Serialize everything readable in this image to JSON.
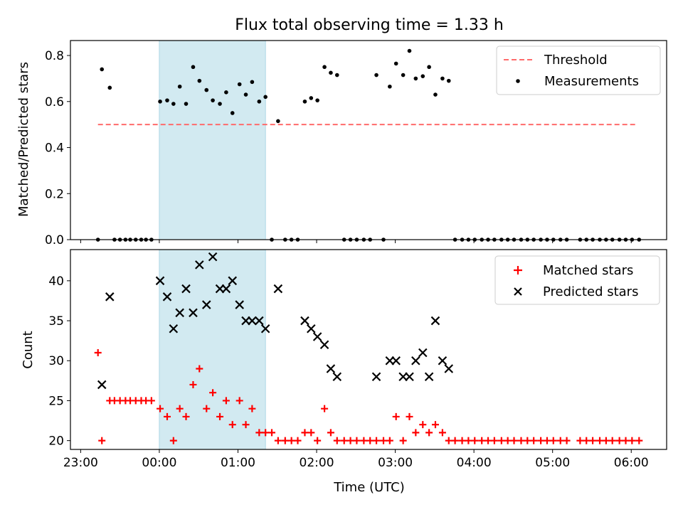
{
  "figure": {
    "title": "Flux total observing time = 1.33 h",
    "xlabel": "Time (UTC)",
    "xticks": [
      {
        "h": -1,
        "label": "23:00"
      },
      {
        "h": 0,
        "label": "00:00"
      },
      {
        "h": 1,
        "label": "01:00"
      },
      {
        "h": 2,
        "label": "02:00"
      },
      {
        "h": 3,
        "label": "03:00"
      },
      {
        "h": 4,
        "label": "04:00"
      },
      {
        "h": 5,
        "label": "05:00"
      },
      {
        "h": 6,
        "label": "06:00"
      }
    ],
    "shaded_span": {
      "start_h": 0.0,
      "end_h": 1.35,
      "color": "#add8e6"
    }
  },
  "chart_data": [
    {
      "type": "scatter",
      "ylabel": "Matched/Predicted stars",
      "xlim_h": [
        -1.13,
        6.45
      ],
      "ylim": [
        0,
        0.865
      ],
      "yticks": [
        {
          "v": 0.0,
          "label": "0.0"
        },
        {
          "v": 0.2,
          "label": "0.2"
        },
        {
          "v": 0.4,
          "label": "0.4"
        },
        {
          "v": 0.6,
          "label": "0.6"
        },
        {
          "v": 0.8,
          "label": "0.8"
        }
      ],
      "threshold": {
        "name": "Threshold",
        "value": 0.5,
        "x_range_h": [
          -0.78,
          6.05
        ],
        "color": "#ff6b6b"
      },
      "series": [
        {
          "name": "Measurements",
          "color": "#000000",
          "points": [
            [
              -0.78,
              0.0
            ],
            [
              -0.73,
              0.74
            ],
            [
              -0.63,
              0.66
            ],
            [
              -0.57,
              0.0
            ],
            [
              -0.5,
              0.0
            ],
            [
              -0.43,
              0.0
            ],
            [
              -0.37,
              0.0
            ],
            [
              -0.3,
              0.0
            ],
            [
              -0.23,
              0.0
            ],
            [
              -0.17,
              0.0
            ],
            [
              -0.1,
              0.0
            ],
            [
              0.01,
              0.6
            ],
            [
              0.1,
              0.605
            ],
            [
              0.18,
              0.59
            ],
            [
              0.26,
              0.665
            ],
            [
              0.34,
              0.59
            ],
            [
              0.43,
              0.75
            ],
            [
              0.51,
              0.69
            ],
            [
              0.6,
              0.65
            ],
            [
              0.68,
              0.605
            ],
            [
              0.77,
              0.59
            ],
            [
              0.85,
              0.64
            ],
            [
              0.93,
              0.55
            ],
            [
              1.02,
              0.675
            ],
            [
              1.1,
              0.63
            ],
            [
              1.18,
              0.685
            ],
            [
              1.27,
              0.6
            ],
            [
              1.35,
              0.62
            ],
            [
              1.43,
              0.0
            ],
            [
              1.51,
              0.515
            ],
            [
              1.6,
              0.0
            ],
            [
              1.68,
              0.0
            ],
            [
              1.76,
              0.0
            ],
            [
              1.85,
              0.6
            ],
            [
              1.93,
              0.615
            ],
            [
              2.01,
              0.605
            ],
            [
              2.1,
              0.75
            ],
            [
              2.18,
              0.725
            ],
            [
              2.26,
              0.715
            ],
            [
              2.35,
              0.0
            ],
            [
              2.43,
              0.0
            ],
            [
              2.51,
              0.0
            ],
            [
              2.6,
              0.0
            ],
            [
              2.68,
              0.0
            ],
            [
              2.76,
              0.715
            ],
            [
              2.85,
              0.0
            ],
            [
              2.93,
              0.665
            ],
            [
              3.01,
              0.765
            ],
            [
              3.1,
              0.715
            ],
            [
              3.18,
              0.82
            ],
            [
              3.26,
              0.7
            ],
            [
              3.35,
              0.71
            ],
            [
              3.43,
              0.75
            ],
            [
              3.51,
              0.63
            ],
            [
              3.6,
              0.7
            ],
            [
              3.68,
              0.69
            ],
            [
              3.76,
              0.0
            ],
            [
              3.85,
              0.0
            ],
            [
              3.93,
              0.0
            ],
            [
              4.01,
              0.0
            ],
            [
              4.1,
              0.0
            ],
            [
              4.18,
              0.0
            ],
            [
              4.26,
              0.0
            ],
            [
              4.35,
              0.0
            ],
            [
              4.43,
              0.0
            ],
            [
              4.51,
              0.0
            ],
            [
              4.6,
              0.0
            ],
            [
              4.68,
              0.0
            ],
            [
              4.76,
              0.0
            ],
            [
              4.85,
              0.0
            ],
            [
              4.93,
              0.0
            ],
            [
              5.01,
              0.0
            ],
            [
              5.1,
              0.0
            ],
            [
              5.18,
              0.0
            ],
            [
              5.35,
              0.0
            ],
            [
              5.43,
              0.0
            ],
            [
              5.51,
              0.0
            ],
            [
              5.6,
              0.0
            ],
            [
              5.68,
              0.0
            ],
            [
              5.76,
              0.0
            ],
            [
              5.85,
              0.0
            ],
            [
              5.93,
              0.0
            ],
            [
              6.01,
              0.0
            ],
            [
              6.1,
              0.0
            ]
          ]
        }
      ],
      "legend": {
        "placement": "upper right",
        "entries": [
          "Threshold",
          "Measurements"
        ]
      }
    },
    {
      "type": "scatter",
      "ylabel": "Count",
      "xlim_h": [
        -1.13,
        6.45
      ],
      "ylim": [
        18.9,
        43.9
      ],
      "yticks": [
        {
          "v": 20,
          "label": "20"
        },
        {
          "v": 25,
          "label": "25"
        },
        {
          "v": 30,
          "label": "30"
        },
        {
          "v": 35,
          "label": "35"
        },
        {
          "v": 40,
          "label": "40"
        }
      ],
      "series": [
        {
          "name": "Matched stars",
          "marker": "plus",
          "color": "#ff0000",
          "points": [
            [
              -0.78,
              31
            ],
            [
              -0.73,
              20
            ],
            [
              -0.63,
              25
            ],
            [
              -0.57,
              25
            ],
            [
              -0.5,
              25
            ],
            [
              -0.43,
              25
            ],
            [
              -0.37,
              25
            ],
            [
              -0.3,
              25
            ],
            [
              -0.23,
              25
            ],
            [
              -0.17,
              25
            ],
            [
              -0.1,
              25
            ],
            [
              0.01,
              24
            ],
            [
              0.1,
              23
            ],
            [
              0.18,
              20
            ],
            [
              0.26,
              24
            ],
            [
              0.34,
              23
            ],
            [
              0.43,
              27
            ],
            [
              0.51,
              29
            ],
            [
              0.6,
              24
            ],
            [
              0.68,
              26
            ],
            [
              0.77,
              23
            ],
            [
              0.85,
              25
            ],
            [
              0.93,
              22
            ],
            [
              1.02,
              25
            ],
            [
              1.1,
              22
            ],
            [
              1.18,
              24
            ],
            [
              1.27,
              21
            ],
            [
              1.35,
              21
            ],
            [
              1.43,
              21
            ],
            [
              1.51,
              20
            ],
            [
              1.6,
              20
            ],
            [
              1.68,
              20
            ],
            [
              1.76,
              20
            ],
            [
              1.85,
              21
            ],
            [
              1.93,
              21
            ],
            [
              2.01,
              20
            ],
            [
              2.1,
              24
            ],
            [
              2.18,
              21
            ],
            [
              2.26,
              20
            ],
            [
              2.35,
              20
            ],
            [
              2.43,
              20
            ],
            [
              2.51,
              20
            ],
            [
              2.6,
              20
            ],
            [
              2.68,
              20
            ],
            [
              2.76,
              20
            ],
            [
              2.85,
              20
            ],
            [
              2.93,
              20
            ],
            [
              3.01,
              23
            ],
            [
              3.1,
              20
            ],
            [
              3.18,
              23
            ],
            [
              3.26,
              21
            ],
            [
              3.35,
              22
            ],
            [
              3.43,
              21
            ],
            [
              3.51,
              22
            ],
            [
              3.6,
              21
            ],
            [
              3.68,
              20
            ],
            [
              3.76,
              20
            ],
            [
              3.85,
              20
            ],
            [
              3.93,
              20
            ],
            [
              4.01,
              20
            ],
            [
              4.1,
              20
            ],
            [
              4.18,
              20
            ],
            [
              4.26,
              20
            ],
            [
              4.35,
              20
            ],
            [
              4.43,
              20
            ],
            [
              4.51,
              20
            ],
            [
              4.6,
              20
            ],
            [
              4.68,
              20
            ],
            [
              4.76,
              20
            ],
            [
              4.85,
              20
            ],
            [
              4.93,
              20
            ],
            [
              5.01,
              20
            ],
            [
              5.1,
              20
            ],
            [
              5.18,
              20
            ],
            [
              5.35,
              20
            ],
            [
              5.43,
              20
            ],
            [
              5.51,
              20
            ],
            [
              5.6,
              20
            ],
            [
              5.68,
              20
            ],
            [
              5.76,
              20
            ],
            [
              5.85,
              20
            ],
            [
              5.93,
              20
            ],
            [
              6.01,
              20
            ],
            [
              6.1,
              20
            ]
          ]
        },
        {
          "name": "Predicted stars",
          "marker": "x",
          "color": "#000000",
          "points": [
            [
              -0.73,
              27
            ],
            [
              -0.63,
              38
            ],
            [
              0.01,
              40
            ],
            [
              0.1,
              38
            ],
            [
              0.18,
              34
            ],
            [
              0.26,
              36
            ],
            [
              0.34,
              39
            ],
            [
              0.43,
              36
            ],
            [
              0.51,
              42
            ],
            [
              0.6,
              37
            ],
            [
              0.68,
              43
            ],
            [
              0.77,
              39
            ],
            [
              0.85,
              39
            ],
            [
              0.93,
              40
            ],
            [
              1.02,
              37
            ],
            [
              1.1,
              35
            ],
            [
              1.18,
              35
            ],
            [
              1.27,
              35
            ],
            [
              1.35,
              34
            ],
            [
              1.51,
              39
            ],
            [
              1.85,
              35
            ],
            [
              1.93,
              34
            ],
            [
              2.01,
              33
            ],
            [
              2.1,
              32
            ],
            [
              2.18,
              29
            ],
            [
              2.26,
              28
            ],
            [
              2.76,
              28
            ],
            [
              2.93,
              30
            ],
            [
              3.01,
              30
            ],
            [
              3.1,
              28
            ],
            [
              3.18,
              28
            ],
            [
              3.26,
              30
            ],
            [
              3.35,
              31
            ],
            [
              3.43,
              28
            ],
            [
              3.51,
              35
            ],
            [
              3.6,
              30
            ],
            [
              3.68,
              29
            ]
          ]
        }
      ],
      "legend": {
        "placement": "upper right",
        "entries": [
          "Matched stars",
          "Predicted stars"
        ]
      }
    }
  ]
}
